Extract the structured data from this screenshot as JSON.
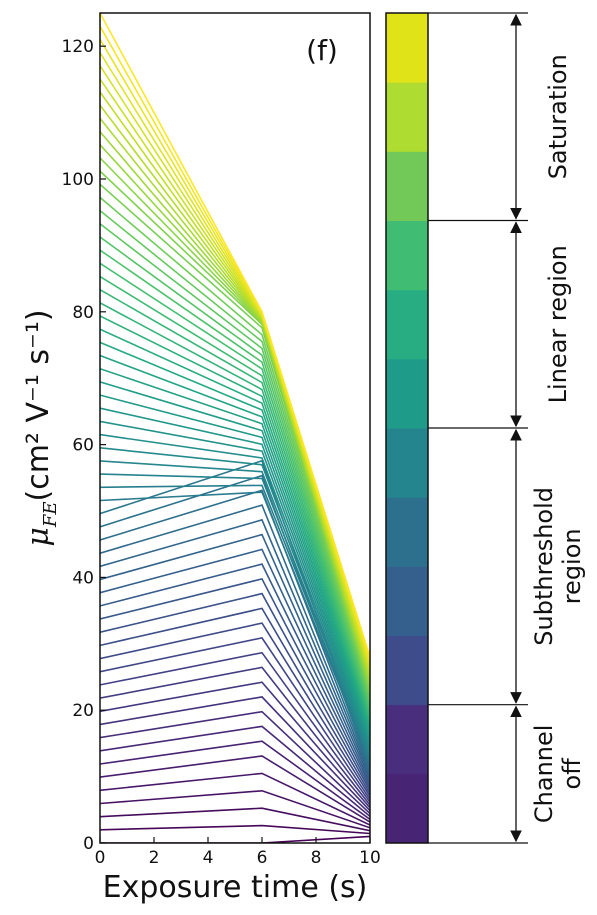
{
  "chart_data": {
    "type": "line",
    "panel_label": "(f)",
    "xlabel": "Exposure time (s)",
    "ylabel_symbol": "μ",
    "ylabel_subscript": "FE",
    "ylabel_units": "(cm² V⁻¹ s⁻¹)",
    "xlim": [
      0,
      10
    ],
    "ylim": [
      0,
      125
    ],
    "x_ticks": [
      0,
      2,
      4,
      6,
      8,
      10
    ],
    "y_ticks": [
      0,
      20,
      40,
      60,
      80,
      100,
      120
    ],
    "x": [
      0,
      6,
      10
    ],
    "grid": false,
    "colormap": "viridis",
    "series_count": 64,
    "series_description": "Each line runs through (0, y0), (6, y6), (10, y10). Start values y0 span 0–125; series are colored by start value using the colorbar bands.",
    "example_series": [
      {
        "values": [
          125,
          80,
          28
        ]
      },
      {
        "values": [
          108,
          79,
          26
        ]
      },
      {
        "values": [
          96,
          70,
          22
        ]
      },
      {
        "values": [
          80,
          64,
          18
        ]
      },
      {
        "values": [
          60,
          53,
          13
        ]
      },
      {
        "values": [
          50,
          51,
          11
        ]
      },
      {
        "values": [
          40,
          47,
          10
        ]
      },
      {
        "values": [
          20,
          28,
          6
        ]
      },
      {
        "values": [
          10,
          15,
          4
        ]
      },
      {
        "values": [
          2,
          3,
          1
        ]
      }
    ],
    "colorbar": {
      "bands": [
        "#440154",
        "#482475",
        "#414487",
        "#355f8d",
        "#2a788e",
        "#21918c",
        "#22a884",
        "#44bf70",
        "#7ad151",
        "#bddf26",
        "#fde725"
      ],
      "bands_display": [
        "#482474",
        "#482e7d",
        "#3f4c8c",
        "#355f8d",
        "#2d708e",
        "#25858e",
        "#1f9b8a",
        "#27ad81",
        "#40bd72",
        "#73c957",
        "#aedc30",
        "#dfe318"
      ],
      "regions": [
        {
          "label_lines": [
            "Channel",
            "off"
          ],
          "from_band": 0,
          "to_band": 2
        },
        {
          "label_lines": [
            "Subthreshold",
            "region"
          ],
          "from_band": 2,
          "to_band": 6
        },
        {
          "label_lines": [
            "Linear region"
          ],
          "from_band": 6,
          "to_band": 9
        },
        {
          "label_lines": [
            "Saturation"
          ],
          "from_band": 9,
          "to_band": 12
        }
      ]
    }
  }
}
